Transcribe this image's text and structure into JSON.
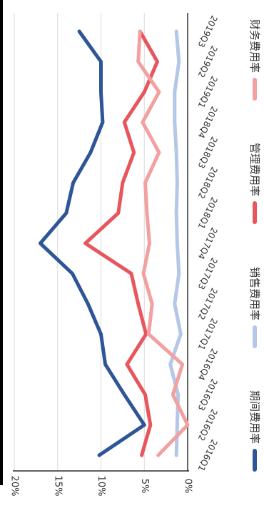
{
  "chart_data": {
    "type": "line",
    "orientation": "rotated-90-clockwise",
    "categories": [
      "2016Q1",
      "2016Q2",
      "2016Q3",
      "2016Q4",
      "2017Q1",
      "2017Q2",
      "2017Q3",
      "2017Q4",
      "2018Q1",
      "2018Q2",
      "2018Q3",
      "2018Q4",
      "2019Q1",
      "2019Q2",
      "2019Q3"
    ],
    "series": [
      {
        "name": "期间费用率",
        "color": "#2E5597",
        "values": [
          10.2,
          5.0,
          7.3,
          9.5,
          10.0,
          11.5,
          13.3,
          17.0,
          14.0,
          13.2,
          11.2,
          9.8,
          10.0,
          10.0,
          12.5
        ]
      },
      {
        "name": "销售费用率",
        "color": "#B4C7E7",
        "values": [
          1.3,
          1.2,
          1.1,
          2.0,
          0.8,
          1.5,
          1.0,
          1.2,
          1.3,
          1.2,
          1.3,
          1.5,
          1.5,
          1.0,
          1.3
        ]
      },
      {
        "name": "管理费用率",
        "color": "#E8555C",
        "values": [
          5.3,
          4.3,
          4.9,
          7.0,
          4.8,
          5.7,
          6.5,
          11.8,
          8.0,
          7.5,
          6.2,
          7.3,
          5.0,
          3.5,
          5.5
        ]
      },
      {
        "name": "财务费用率",
        "color": "#F2A0A0",
        "values": [
          3.4,
          0.0,
          1.7,
          0.6,
          4.5,
          4.1,
          5.1,
          4.4,
          4.7,
          4.9,
          3.3,
          5.2,
          3.3,
          5.7,
          5.5
        ]
      }
    ],
    "yticks": [
      "0%",
      "5%",
      "10%",
      "15%",
      "20%"
    ],
    "ylim": [
      0,
      20
    ],
    "grid": true,
    "legend": "bottom"
  }
}
